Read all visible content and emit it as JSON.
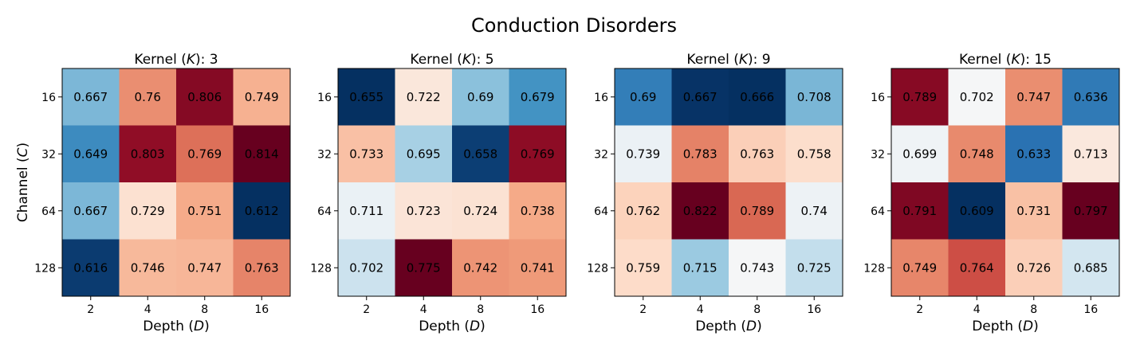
{
  "chart_data": {
    "type": "heatmap",
    "title": "Conduction Disorders",
    "colormap": "RdBu_r",
    "xlabel": "Depth (D)",
    "ylabel": "Channel (C)",
    "x_categories": [
      "2",
      "4",
      "8",
      "16"
    ],
    "y_categories": [
      "16",
      "32",
      "64",
      "128"
    ],
    "panels": [
      {
        "title": "Kernel (K): 3",
        "values": [
          [
            0.667,
            0.76,
            0.806,
            0.749
          ],
          [
            0.649,
            0.803,
            0.769,
            0.814
          ],
          [
            0.667,
            0.729,
            0.751,
            0.612
          ],
          [
            0.616,
            0.746,
            0.747,
            0.763
          ]
        ],
        "labels": [
          [
            "0.667",
            "0.76",
            "0.806",
            "0.749"
          ],
          [
            "0.649",
            "0.803",
            "0.769",
            "0.814"
          ],
          [
            "0.667",
            "0.729",
            "0.751",
            "0.612"
          ],
          [
            "0.616",
            "0.746",
            "0.747",
            "0.763"
          ]
        ]
      },
      {
        "title": "Kernel (K): 5",
        "values": [
          [
            0.655,
            0.722,
            0.69,
            0.679
          ],
          [
            0.733,
            0.695,
            0.658,
            0.769
          ],
          [
            0.711,
            0.723,
            0.724,
            0.738
          ],
          [
            0.702,
            0.775,
            0.742,
            0.741
          ]
        ],
        "labels": [
          [
            "0.655",
            "0.722",
            "0.69",
            "0.679"
          ],
          [
            "0.733",
            "0.695",
            "0.658",
            "0.769"
          ],
          [
            "0.711",
            "0.723",
            "0.724",
            "0.738"
          ],
          [
            "0.702",
            "0.775",
            "0.742",
            "0.741"
          ]
        ]
      },
      {
        "title": "Kernel (K): 9",
        "values": [
          [
            0.69,
            0.667,
            0.666,
            0.708
          ],
          [
            0.739,
            0.783,
            0.763,
            0.758
          ],
          [
            0.762,
            0.822,
            0.789,
            0.74
          ],
          [
            0.759,
            0.715,
            0.743,
            0.725
          ]
        ],
        "labels": [
          [
            "0.69",
            "0.667",
            "0.666",
            "0.708"
          ],
          [
            "0.739",
            "0.783",
            "0.763",
            "0.758"
          ],
          [
            "0.762",
            "0.822",
            "0.789",
            "0.74"
          ],
          [
            "0.759",
            "0.715",
            "0.743",
            "0.725"
          ]
        ]
      },
      {
        "title": "Kernel (K): 15",
        "values": [
          [
            0.789,
            0.702,
            0.747,
            0.636
          ],
          [
            0.699,
            0.748,
            0.633,
            0.713
          ],
          [
            0.791,
            0.609,
            0.731,
            0.797
          ],
          [
            0.749,
            0.764,
            0.726,
            0.685
          ]
        ],
        "labels": [
          [
            "0.789",
            "0.702",
            "0.747",
            "0.636"
          ],
          [
            "0.699",
            "0.748",
            "0.633",
            "0.713"
          ],
          [
            "0.791",
            "0.609",
            "0.731",
            "0.797"
          ],
          [
            "0.749",
            "0.764",
            "0.726",
            "0.685"
          ]
        ]
      }
    ]
  }
}
